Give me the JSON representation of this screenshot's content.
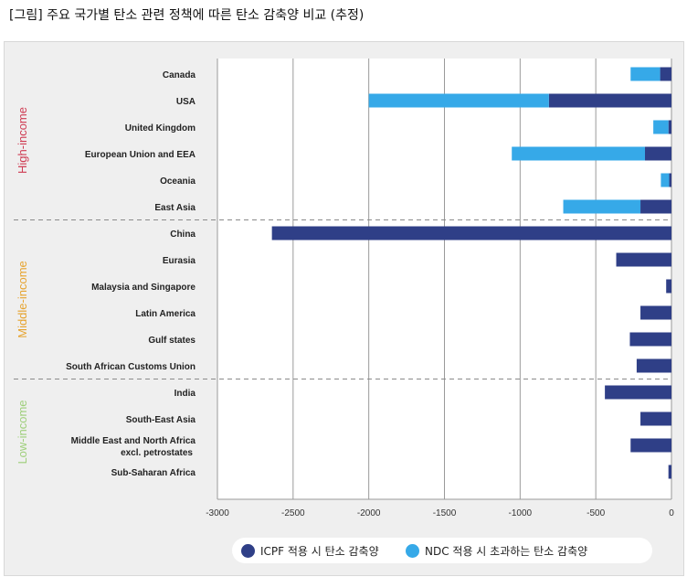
{
  "caption": "[그림] 주요 국가별 탄소 관련 정책에 따른 탄소  감축양 비교 (추정)",
  "colors": {
    "icpf": "#2f3f87",
    "ndc": "#36a9e8",
    "high": "#cf3b52",
    "middle": "#e6a32e",
    "low": "#9ecf7a"
  },
  "chart_data": {
    "type": "bar",
    "orientation": "horizontal",
    "stacked": true,
    "xlim": [
      -3000,
      0
    ],
    "xticks": [
      "-3000",
      "-2500",
      "-2000",
      "-1500",
      "-1000",
      "-500",
      "0"
    ],
    "grid": true,
    "legend": "bottom",
    "categories": [
      "Canada",
      "USA",
      "United Kingdom",
      "European Union and EEA",
      "Oceania",
      "East Asia",
      "China",
      "Eurasia",
      "Malaysia and Singapore",
      "Latin America",
      "Gulf states",
      "South African Customs Union",
      "India",
      "South-East Asia",
      "Middle East and North Africa excl. petrostates",
      "Sub-Saharan Africa"
    ],
    "category_lines": [
      [
        "Canada"
      ],
      [
        "USA"
      ],
      [
        "United Kingdom"
      ],
      [
        "European Union and EEA"
      ],
      [
        "Oceania"
      ],
      [
        "East Asia"
      ],
      [
        "China"
      ],
      [
        "Eurasia"
      ],
      [
        "Malaysia and Singapore"
      ],
      [
        "Latin America"
      ],
      [
        "Gulf states"
      ],
      [
        "South African Customs Union"
      ],
      [
        "India"
      ],
      [
        "South-East Asia"
      ],
      [
        "Middle East and North Africa",
        "excl. petrostates"
      ],
      [
        "Sub-Saharan Africa"
      ]
    ],
    "groups": [
      {
        "label": "High-income",
        "start": 0,
        "end": 5
      },
      {
        "label": "Middle-income",
        "start": 6,
        "end": 11
      },
      {
        "label": "Low-income",
        "start": 12,
        "end": 15
      }
    ],
    "series": [
      {
        "name": "ICPF 적용 시 탄소 감축양",
        "values": [
          -75,
          -810,
          -20,
          -175,
          -15,
          -205,
          -2640,
          -365,
          -35,
          -205,
          -275,
          -230,
          -440,
          -205,
          -270,
          -20
        ]
      },
      {
        "name": "NDC 적용 시 초과하는 탄소 감축양",
        "values": [
          -195,
          -1190,
          -100,
          -880,
          -55,
          -510,
          0,
          0,
          0,
          0,
          0,
          0,
          0,
          0,
          0,
          0
        ]
      }
    ]
  }
}
